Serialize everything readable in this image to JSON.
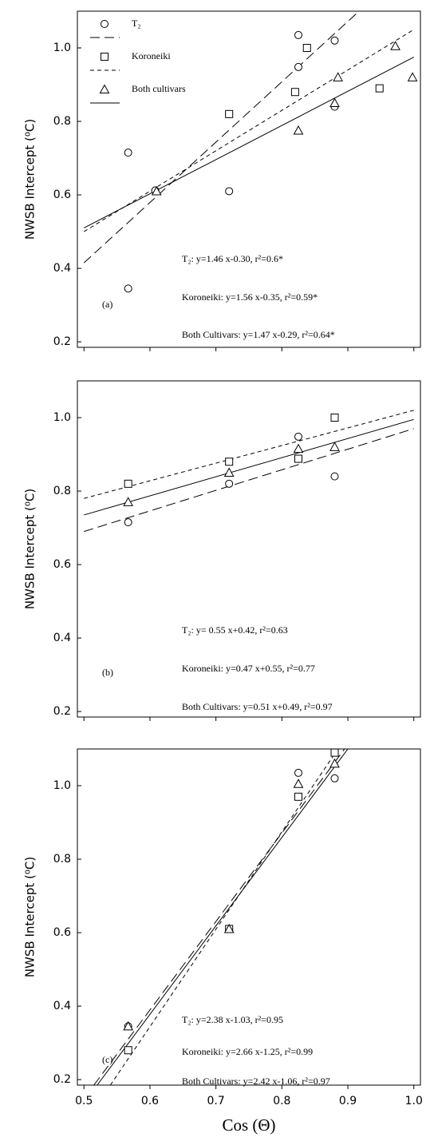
{
  "chart_data": [
    {
      "type": "scatter",
      "panel_label": "(a)",
      "ylabel": "NWSB Intercept (⁰C)",
      "xlim": [
        0.49,
        1.01
      ],
      "ylim": [
        0.185,
        1.1
      ],
      "xticks": [
        0.5,
        0.6,
        0.7,
        0.8,
        0.9,
        {
          "value": 1,
          "label": "1.0"
        }
      ],
      "yticks": [
        0.2,
        0.4,
        0.6,
        0.8,
        {
          "value": 1,
          "label": "1.0"
        }
      ],
      "show_xtick_labels": false,
      "legend": "upper left",
      "series": [
        {
          "name": "T₂",
          "marker": "circle",
          "line": "long-dash",
          "color": "#000000",
          "x": [
            0.567,
            0.567,
            0.608,
            0.72,
            0.72,
            0.825,
            0.825,
            0.88,
            0.88
          ],
          "values": [
            0.715,
            0.345,
            0.612,
            0.82,
            0.61,
            1.035,
            0.948,
            1.02,
            0.84
          ],
          "fit": {
            "x": [
              0.5,
              0.917
            ],
            "values": [
              0.415,
              1.1
            ]
          }
        },
        {
          "name": "Koroneiki",
          "marker": "square",
          "line": "short-dash",
          "color": "#000000",
          "x": [
            0.72,
            0.82,
            0.838,
            0.948
          ],
          "values": [
            0.82,
            0.88,
            1.0,
            0.89
          ],
          "fit": {
            "x": [
              0.5,
              1.0
            ],
            "values": [
              0.5,
              1.05
            ]
          }
        },
        {
          "name": "Both cultivars",
          "marker": "triangle",
          "line": "solid",
          "color": "#000000",
          "x": [
            0.61,
            0.825,
            0.885,
            0.88,
            0.972,
            0.998
          ],
          "values": [
            0.61,
            0.775,
            0.92,
            0.85,
            1.005,
            0.92
          ],
          "fit": {
            "x": [
              0.5,
              1.0
            ],
            "values": [
              0.51,
              0.975
            ]
          }
        }
      ],
      "annotations": [
        "T₂: y=1.46 x-0.30, r²=0.6*",
        "Koroneiki: y=1.56 x-0.35, r²=0.59*",
        "Both Cultivars: y=1.47 x-0.29, r²=0.64*"
      ]
    },
    {
      "type": "scatter",
      "panel_label": "(b)",
      "ylabel": "NWSB Intercept (⁰C)",
      "xlim": [
        0.49,
        1.01
      ],
      "ylim": [
        0.185,
        1.1
      ],
      "xticks": [
        0.5,
        0.6,
        0.7,
        0.8,
        0.9,
        {
          "value": 1,
          "label": "1.0"
        }
      ],
      "yticks": [
        0.2,
        0.4,
        0.6,
        0.8,
        {
          "value": 1,
          "label": "1.0"
        }
      ],
      "show_xtick_labels": false,
      "series": [
        {
          "marker": "circle",
          "line": "long-dash",
          "color": "#000000",
          "x": [
            0.567,
            0.72,
            0.825,
            0.88
          ],
          "values": [
            0.715,
            0.82,
            0.948,
            0.84
          ],
          "fit": {
            "x": [
              0.5,
              1.0
            ],
            "values": [
              0.69,
              0.97
            ]
          }
        },
        {
          "marker": "square",
          "line": "short-dash",
          "color": "#000000",
          "x": [
            0.567,
            0.72,
            0.825,
            0.88
          ],
          "values": [
            0.82,
            0.88,
            0.888,
            1.0
          ],
          "fit": {
            "x": [
              0.5,
              1.0
            ],
            "values": [
              0.78,
              1.02
            ]
          }
        },
        {
          "marker": "triangle",
          "line": "solid",
          "color": "#000000",
          "x": [
            0.567,
            0.72,
            0.825,
            0.88
          ],
          "values": [
            0.77,
            0.85,
            0.915,
            0.92
          ],
          "fit": {
            "x": [
              0.5,
              1.0
            ],
            "values": [
              0.735,
              0.995
            ]
          }
        }
      ],
      "annotations": [
        "T₂: y= 0.55 x+0.42, r²=0.63",
        "Koroneiki: y=0.47 x+0.55, r²=0.77",
        "Both Cultivars: y=0.51 x+0.49, r²=0.97"
      ]
    },
    {
      "type": "scatter",
      "panel_label": "(c)",
      "ylabel": "NWSB Intercept (⁰C)",
      "xlabel": "Cos (Θ)",
      "xlim": [
        0.49,
        1.01
      ],
      "ylim": [
        0.185,
        1.1
      ],
      "xticks": [
        0.5,
        0.6,
        0.7,
        0.8,
        0.9,
        {
          "value": 1,
          "label": "1.0"
        }
      ],
      "yticks": [
        0.2,
        0.4,
        0.6,
        0.8,
        {
          "value": 1,
          "label": "1.0"
        }
      ],
      "show_xtick_labels": true,
      "series": [
        {
          "marker": "circle",
          "line": "long-dash",
          "color": "#000000",
          "x": [
            0.567,
            0.72,
            0.825,
            0.88
          ],
          "values": [
            0.345,
            0.61,
            1.035,
            1.02
          ],
          "fit": {
            "x": [
              0.515,
              0.895
            ],
            "values": [
              0.185,
              1.1
            ]
          }
        },
        {
          "marker": "square",
          "line": "short-dash",
          "color": "#000000",
          "x": [
            0.567,
            0.72,
            0.825,
            0.88
          ],
          "values": [
            0.28,
            0.61,
            0.97,
            1.09
          ],
          "fit": {
            "x": [
              0.54,
              0.885
            ],
            "values": [
              0.185,
              1.1
            ]
          }
        },
        {
          "marker": "triangle",
          "line": "solid",
          "color": "#000000",
          "x": [
            0.567,
            0.72,
            0.825,
            0.88
          ],
          "values": [
            0.345,
            0.61,
            1.005,
            1.06
          ],
          "fit": {
            "x": [
              0.52,
              0.9
            ],
            "values": [
              0.185,
              1.1
            ]
          }
        }
      ],
      "annotations": [
        "T₂: y=2.38 x-1.03, r²=0.95",
        "Koroneiki: y=2.66 x-1.25, r²=0.99",
        "Both Cultivars: y=2.42 x-1.06, r²=0.97"
      ]
    }
  ]
}
